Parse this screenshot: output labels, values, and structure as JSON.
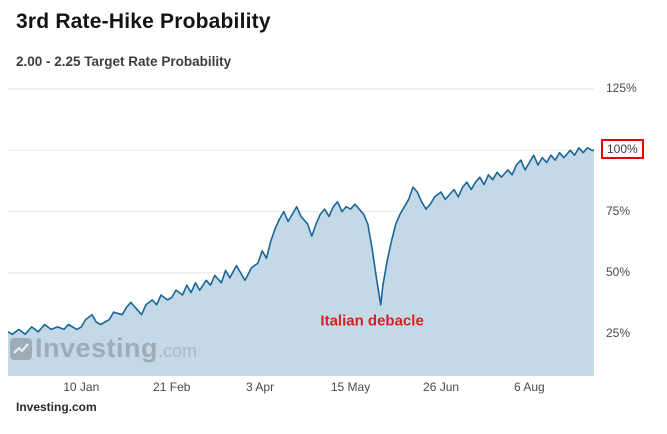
{
  "header": {
    "title": "3rd Rate-Hike Probability",
    "subtitle": "2.00 - 2.25 Target Rate Probability"
  },
  "watermark": {
    "name": "Investing",
    "suffix": ".com"
  },
  "footer": {
    "source": "Investing.com"
  },
  "chart_data": {
    "type": "area",
    "title": "3rd Rate-Hike Probability",
    "subtitle": "2.00 - 2.25 Target Rate Probability",
    "xlabel": "",
    "ylabel": "",
    "x_unit": "day_of_year_2018 (negative = Dec 2017)",
    "xlim": [
      -24,
      248
    ],
    "ylim": [
      8,
      127
    ],
    "grid": "horizontal",
    "legend": "none",
    "line_color": "#1b6698",
    "fill_color": "#c3d9e8",
    "x_ticks": {
      "days": [
        10,
        52,
        93,
        135,
        177,
        218
      ],
      "labels": [
        "10 Jan",
        "21 Feb",
        "3 Apr",
        "15 May",
        "26 Jun",
        "6 Aug"
      ]
    },
    "y_ticks": {
      "values": [
        25,
        50,
        75,
        100,
        125
      ],
      "labels": [
        "25%",
        "50%",
        "75%",
        "100%",
        "125%"
      ]
    },
    "highlight": {
      "y_tick": "100%",
      "box_color": "#ee0000"
    },
    "annotations": [
      {
        "text": "Italian debacle",
        "x_day": 145,
        "y_value": 30.5,
        "color": "#dd1d21"
      }
    ],
    "points": [
      [
        -24,
        26
      ],
      [
        -22,
        25
      ],
      [
        -19,
        27
      ],
      [
        -16,
        25
      ],
      [
        -13,
        28
      ],
      [
        -10,
        26
      ],
      [
        -7,
        29
      ],
      [
        -4,
        27
      ],
      [
        -1,
        28
      ],
      [
        2,
        27
      ],
      [
        4,
        29
      ],
      [
        8,
        27
      ],
      [
        10,
        28
      ],
      [
        12,
        31
      ],
      [
        15,
        33
      ],
      [
        17,
        30
      ],
      [
        19,
        29
      ],
      [
        23,
        31
      ],
      [
        25,
        34
      ],
      [
        29,
        33
      ],
      [
        31,
        36
      ],
      [
        33,
        38
      ],
      [
        36,
        35
      ],
      [
        38,
        33
      ],
      [
        40,
        37
      ],
      [
        43,
        39
      ],
      [
        45,
        37
      ],
      [
        47,
        41
      ],
      [
        50,
        39
      ],
      [
        52,
        40
      ],
      [
        54,
        43
      ],
      [
        57,
        41
      ],
      [
        59,
        45
      ],
      [
        61,
        42
      ],
      [
        63,
        46
      ],
      [
        65,
        43
      ],
      [
        68,
        47
      ],
      [
        70,
        45
      ],
      [
        72,
        49
      ],
      [
        75,
        46
      ],
      [
        77,
        51
      ],
      [
        79,
        48
      ],
      [
        82,
        53
      ],
      [
        84,
        50
      ],
      [
        86,
        47
      ],
      [
        89,
        52
      ],
      [
        92,
        54
      ],
      [
        94,
        59
      ],
      [
        96,
        56
      ],
      [
        98,
        63
      ],
      [
        100,
        68
      ],
      [
        102,
        72
      ],
      [
        104,
        75
      ],
      [
        106,
        71
      ],
      [
        108,
        74
      ],
      [
        110,
        77
      ],
      [
        112,
        73
      ],
      [
        115,
        70
      ],
      [
        117,
        65
      ],
      [
        119,
        70
      ],
      [
        121,
        74
      ],
      [
        123,
        76
      ],
      [
        125,
        73
      ],
      [
        127,
        77
      ],
      [
        129,
        79
      ],
      [
        131,
        75
      ],
      [
        133,
        77
      ],
      [
        135,
        76
      ],
      [
        137,
        78
      ],
      [
        139,
        76
      ],
      [
        141,
        74
      ],
      [
        143,
        70
      ],
      [
        145,
        60
      ],
      [
        147,
        48
      ],
      [
        149,
        37
      ],
      [
        150,
        45
      ],
      [
        152,
        55
      ],
      [
        154,
        63
      ],
      [
        156,
        70
      ],
      [
        158,
        74
      ],
      [
        160,
        77
      ],
      [
        162,
        80
      ],
      [
        164,
        85
      ],
      [
        166,
        83
      ],
      [
        168,
        79
      ],
      [
        170,
        76
      ],
      [
        172,
        78
      ],
      [
        174,
        81
      ],
      [
        177,
        83
      ],
      [
        179,
        80
      ],
      [
        181,
        82
      ],
      [
        183,
        84
      ],
      [
        185,
        81
      ],
      [
        187,
        85
      ],
      [
        189,
        87
      ],
      [
        191,
        84
      ],
      [
        193,
        87
      ],
      [
        195,
        89
      ],
      [
        197,
        86
      ],
      [
        199,
        90
      ],
      [
        201,
        88
      ],
      [
        203,
        91
      ],
      [
        205,
        89
      ],
      [
        208,
        92
      ],
      [
        210,
        90
      ],
      [
        212,
        94
      ],
      [
        214,
        96
      ],
      [
        216,
        92
      ],
      [
        218,
        95
      ],
      [
        220,
        98
      ],
      [
        222,
        94
      ],
      [
        224,
        97
      ],
      [
        226,
        95
      ],
      [
        228,
        98
      ],
      [
        230,
        96
      ],
      [
        232,
        99
      ],
      [
        234,
        97
      ],
      [
        237,
        100
      ],
      [
        239,
        98
      ],
      [
        241,
        101
      ],
      [
        243,
        99
      ],
      [
        245,
        101
      ],
      [
        247,
        100
      ],
      [
        248,
        100
      ]
    ]
  }
}
